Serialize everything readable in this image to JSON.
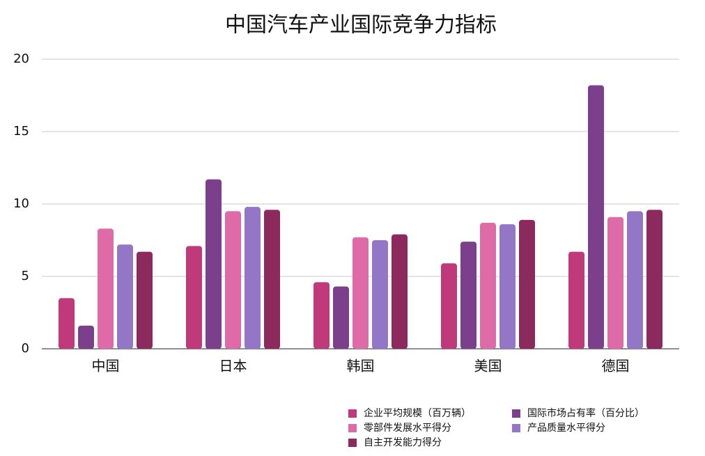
{
  "chart_data": {
    "type": "bar",
    "title": "中国汽车产业国际竞争力指标",
    "categories": [
      "中国",
      "日本",
      "韩国",
      "美国",
      "德国"
    ],
    "series": [
      {
        "name": "企业平均规模（百万辆）",
        "color": "#c0397a",
        "values": [
          3.5,
          7.1,
          4.6,
          5.9,
          6.7
        ]
      },
      {
        "name": "国际市场占有率（百分比）",
        "color": "#7b3f8c",
        "values": [
          1.6,
          11.7,
          4.3,
          7.4,
          18.2
        ]
      },
      {
        "name": "零部件发展水平得分",
        "color": "#de6aa8",
        "values": [
          8.3,
          9.5,
          7.7,
          8.7,
          9.1
        ]
      },
      {
        "name": "产品质量水平得分",
        "color": "#9476c6",
        "values": [
          7.2,
          9.8,
          7.5,
          8.6,
          9.5
        ]
      },
      {
        "name": "自主开发能力得分",
        "color": "#8c2a5e",
        "values": [
          6.7,
          9.6,
          7.9,
          8.9,
          9.6
        ]
      }
    ],
    "ylim": [
      0,
      20
    ],
    "yticks": [
      0,
      5,
      10,
      15,
      20
    ],
    "grid": true,
    "legend": "bottom"
  }
}
